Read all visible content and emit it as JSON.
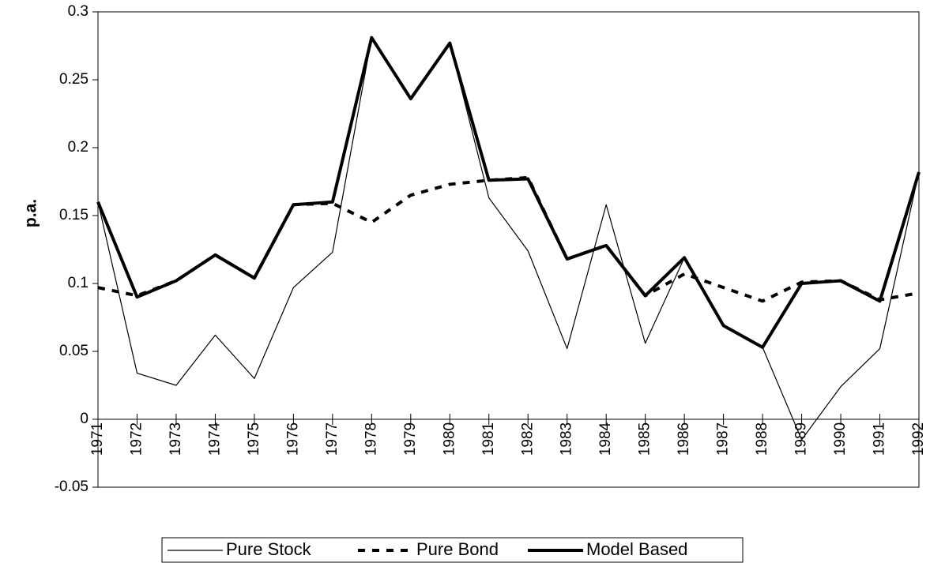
{
  "chart_data": {
    "type": "line",
    "y_label": "p.a.",
    "categories": [
      "1971",
      "1972",
      "1973",
      "1974",
      "1975",
      "1976",
      "1977",
      "1978",
      "1979",
      "1980",
      "1981",
      "1982",
      "1983",
      "1984",
      "1985",
      "1986",
      "1987",
      "1988",
      "1989",
      "1990",
      "1991",
      "1992"
    ],
    "series": [
      {
        "name": "Pure Stock",
        "color": "#000000",
        "width": 1.2,
        "dashed": false,
        "values": [
          0.16,
          0.034,
          0.025,
          0.062,
          0.03,
          0.097,
          0.123,
          0.281,
          0.236,
          0.277,
          0.163,
          0.124,
          0.052,
          0.158,
          0.056,
          0.119,
          0.069,
          0.053,
          -0.015,
          0.024,
          0.052,
          0.182
        ]
      },
      {
        "name": "Pure Bond",
        "color": "#000000",
        "width": 4,
        "dashed": true,
        "values": [
          0.097,
          0.091,
          0.102,
          0.121,
          0.104,
          0.158,
          0.159,
          0.145,
          0.165,
          0.173,
          0.176,
          0.178,
          0.118,
          0.128,
          0.091,
          0.107,
          0.097,
          0.087,
          0.101,
          0.102,
          0.088,
          0.093
        ]
      },
      {
        "name": "Model Based",
        "color": "#000000",
        "width": 4,
        "dashed": false,
        "values": [
          0.16,
          0.09,
          0.102,
          0.121,
          0.104,
          0.158,
          0.16,
          0.281,
          0.236,
          0.277,
          0.176,
          0.177,
          0.118,
          0.128,
          0.091,
          0.119,
          0.069,
          0.053,
          0.1,
          0.102,
          0.087,
          0.182
        ]
      }
    ],
    "ylim": [
      -0.05,
      0.3
    ],
    "yticks": [
      0.3,
      0.25,
      0.2,
      0.15,
      0.1,
      0.05,
      0,
      -0.05
    ],
    "legend": "bottom"
  }
}
